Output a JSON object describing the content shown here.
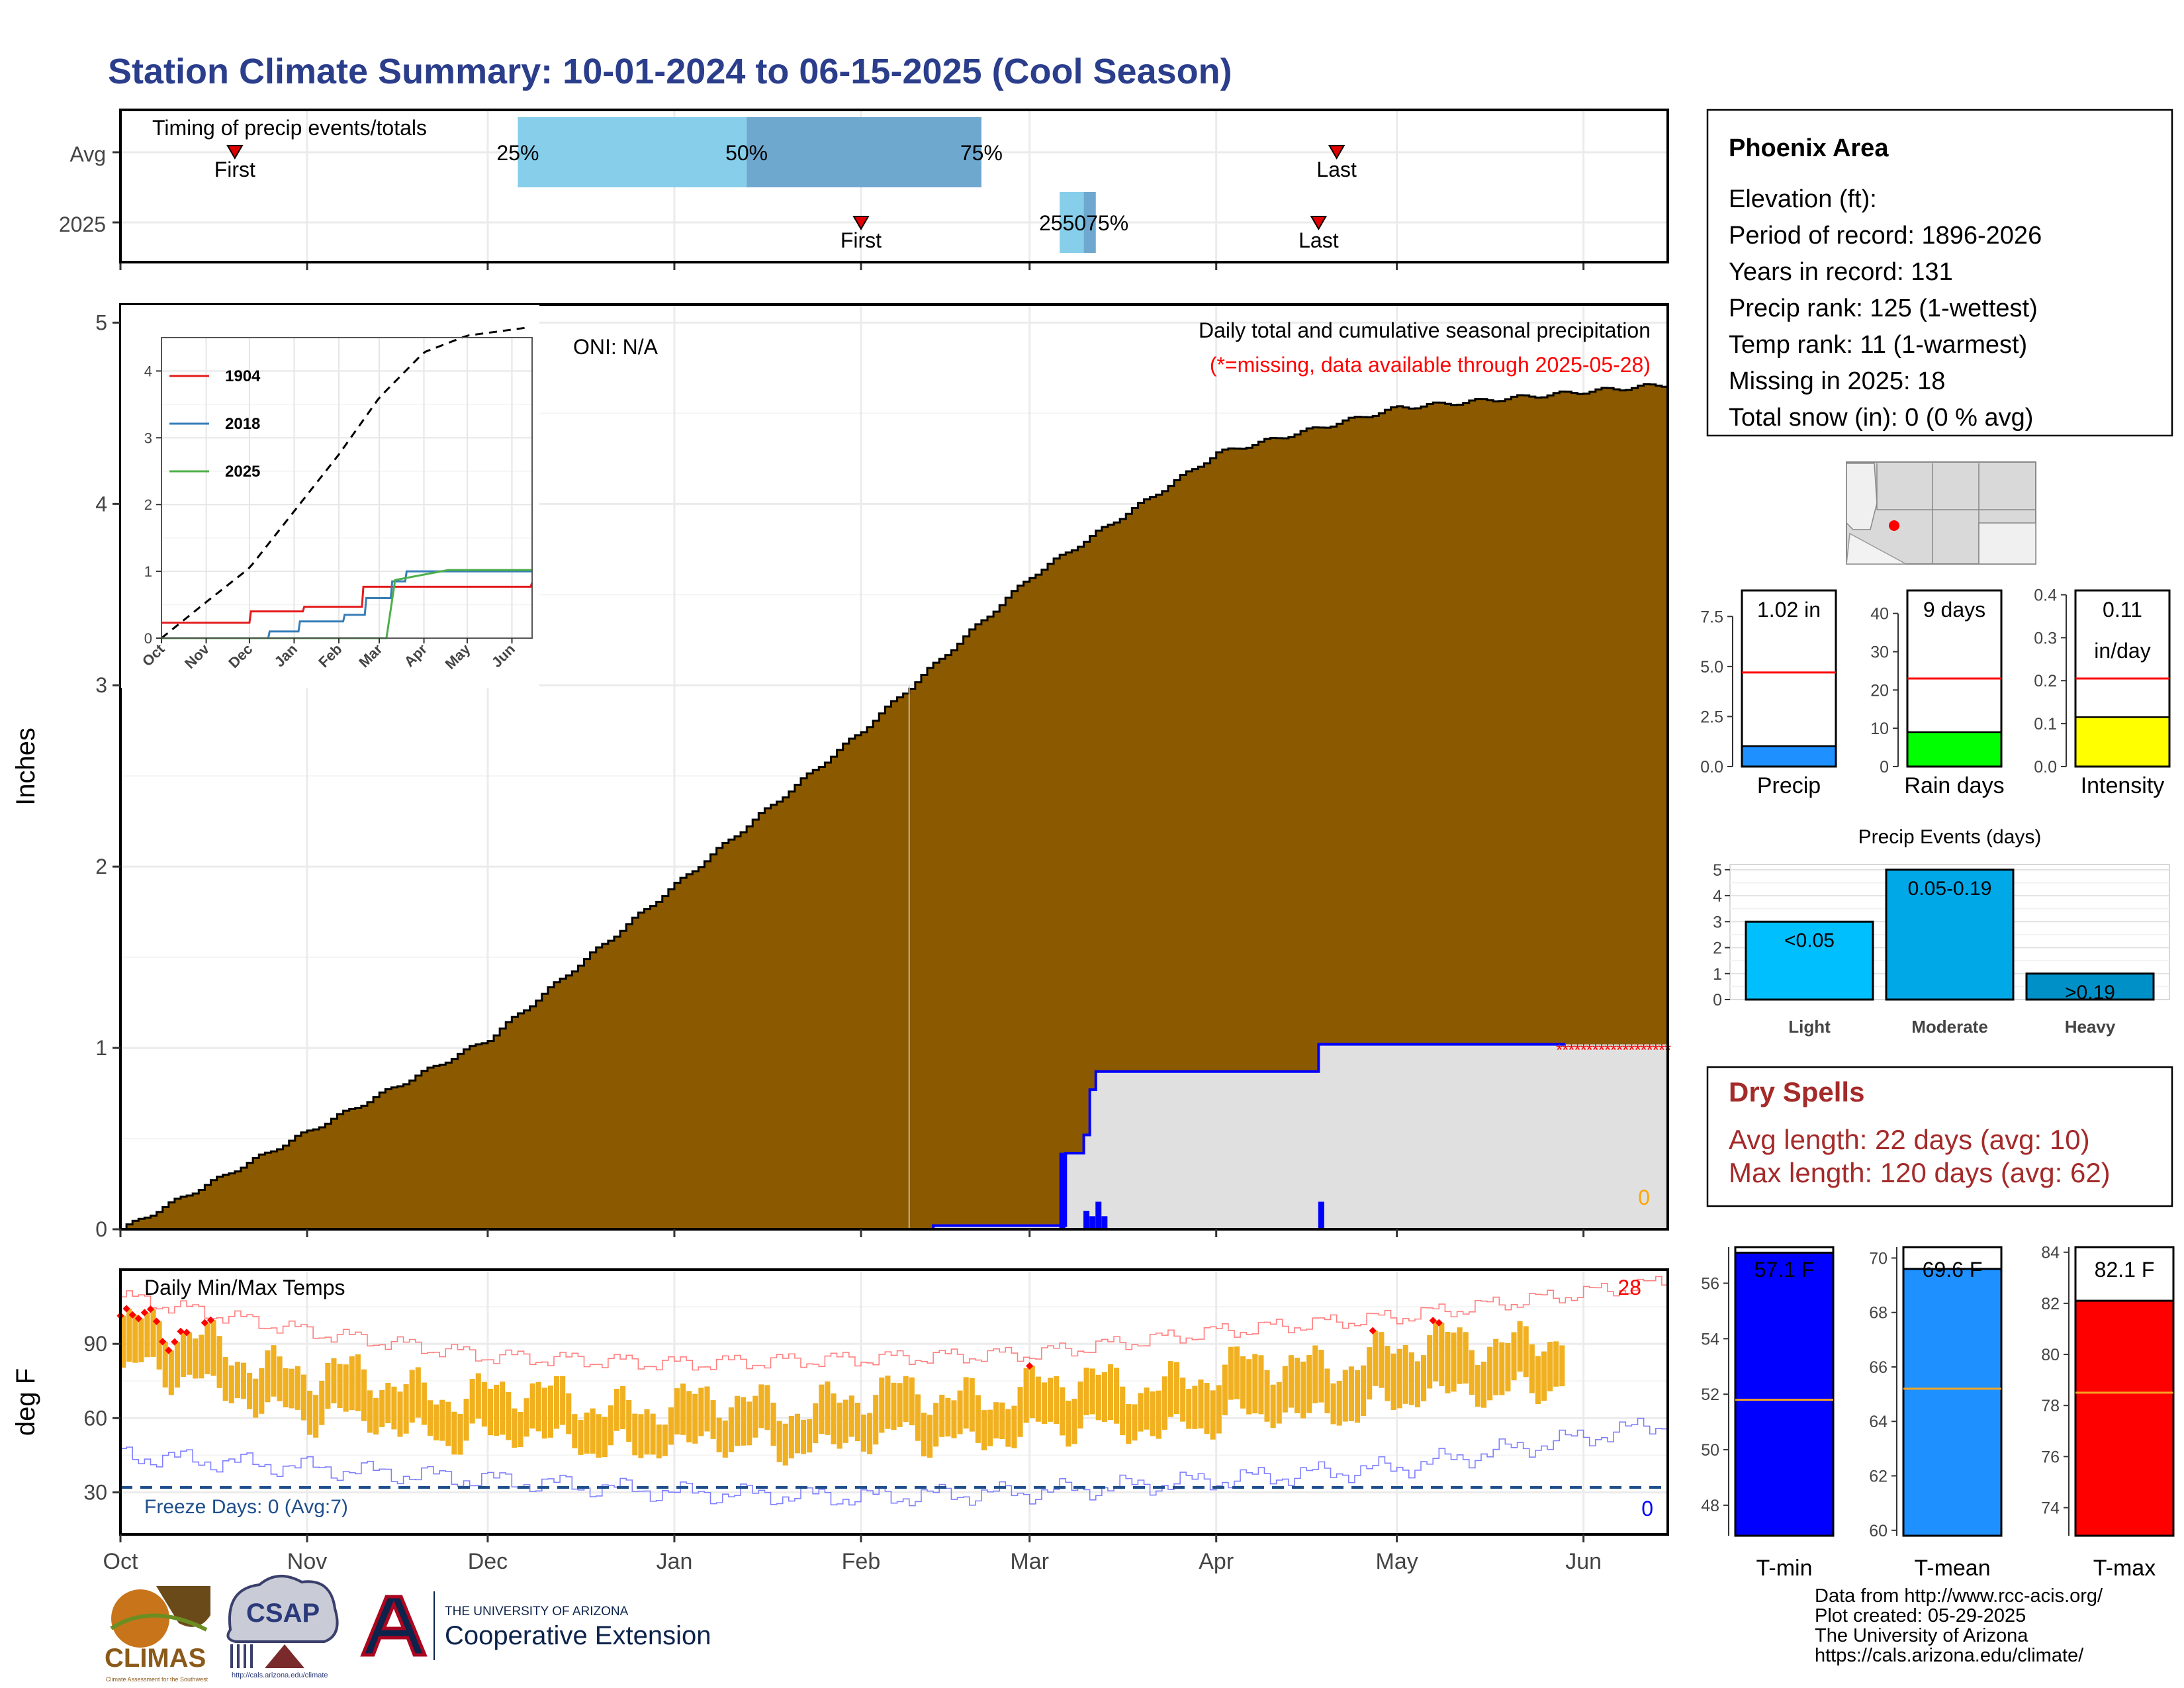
{
  "title": "Station Climate Summary: 10-01-2024 to 06-15-2025 (Cool Season)",
  "colors": {
    "title": "#2b3e8c",
    "cum_avg": "#8b5a00",
    "cum_obs_fill": "#e0e0e0",
    "obs_line": "#0000ff",
    "missing": "#ff0000",
    "temp_bar": "#f0b020",
    "tmax_line": "#ff8080",
    "tmin_line": "#8080ff",
    "freeze": "#1f4e8c",
    "onset_light": "#87ceeb",
    "onset_dark": "#6fa8cf",
    "dry_spell": "#a52a2a",
    "orange_zero": "#ffa500"
  },
  "timing_panel": {
    "label": "Timing of precip events/totals",
    "row_labels": [
      "Avg",
      "2025"
    ],
    "first_label": "First",
    "last_label": "Last",
    "pct_labels": [
      "25%",
      "50%",
      "75%"
    ],
    "pct_2025_label": "255075%",
    "avg": {
      "first": "2024-10-20",
      "p25": "2024-12-06",
      "p50": "2025-01-13",
      "p75": "2025-02-21",
      "last": "2025-04-21"
    },
    "y2025": {
      "first": "2025-02-01",
      "p25": "2025-03-06",
      "p50": "2025-03-10",
      "p75": "2025-03-12",
      "last": "2025-04-18"
    }
  },
  "main_panel": {
    "ylabel": "Inches",
    "yticks": [
      "0",
      "1",
      "2",
      "3",
      "4",
      "5"
    ],
    "xticks": [
      "Oct",
      "Nov",
      "Dec",
      "Jan",
      "Feb",
      "Mar",
      "Apr",
      "May",
      "Jun"
    ],
    "oni": "ONI: N/A",
    "subtitle1": "Daily total and cumulative seasonal precipitation",
    "subtitle2": "(*=missing, data available through 2025-05-28)",
    "zero_label": "0"
  },
  "inset": {
    "yticks": [
      "0",
      "1",
      "2",
      "3",
      "4"
    ],
    "xticks": [
      "Oct",
      "Nov",
      "Dec",
      "Jan",
      "Feb",
      "Mar",
      "Apr",
      "May",
      "Jun"
    ],
    "legend": [
      "1904",
      "2018",
      "2025"
    ],
    "legend_colors": [
      "#e41a1c",
      "#377eb8",
      "#4daf4a"
    ]
  },
  "temp_panel": {
    "ylabel": "deg F",
    "title": "Daily Min/Max Temps",
    "yticks": [
      "30",
      "60",
      "90"
    ],
    "freeze_label": "Freeze Days: 0 (Avg:7)",
    "right_top": "28",
    "right_bottom": "0",
    "xticks": [
      "Oct",
      "Nov",
      "Dec",
      "Jan",
      "Feb",
      "Mar",
      "Apr",
      "May",
      "Jun"
    ]
  },
  "station_box": {
    "name": "Phoenix Area",
    "lines": [
      "Elevation (ft):",
      "Period of record: 1896-2026",
      "Years in record: 131",
      "Precip rank: 125 (1-wettest)",
      "Temp rank: 11 (1-warmest)",
      "Missing in 2025: 18",
      "Total snow (in): 0 (0 % avg)"
    ]
  },
  "precip_summary": {
    "precip": {
      "label": "Precip",
      "value_label": "1.02 in",
      "value": 1.02,
      "avg": 4.7,
      "yticks": [
        "0.0",
        "2.5",
        "5.0",
        "7.5"
      ],
      "ymax": 8.8,
      "color": "#1e90ff"
    },
    "rain_days": {
      "label": "Rain days",
      "value_label": "9 days",
      "value": 9,
      "avg": 23,
      "yticks": [
        "0",
        "10",
        "20",
        "30",
        "40"
      ],
      "ymax": 46,
      "color": "#00ff00"
    },
    "intensity": {
      "label": "Intensity",
      "value_label1": "0.11",
      "value_label2": "in/day",
      "value": 0.115,
      "avg": 0.205,
      "yticks": [
        "0.0",
        "0.1",
        "0.2",
        "0.3",
        "0.4"
      ],
      "ymax": 0.41,
      "color": "#ffff00"
    }
  },
  "events_chart": {
    "title": "Precip Events (days)",
    "yticks": [
      "0",
      "1",
      "2",
      "3",
      "4",
      "5"
    ],
    "categories": [
      "Light",
      "Moderate",
      "Heavy"
    ],
    "bar_labels": [
      "<0.05",
      "0.05-0.19",
      ">0.19"
    ],
    "values": [
      3,
      5,
      1
    ],
    "colors": [
      "#00bfff",
      "#00a8e8",
      "#0090c8"
    ]
  },
  "dry_spells": {
    "title": "Dry Spells",
    "avg_line": "Avg length: 22 days (avg: 10)",
    "max_line": "Max length: 120 days (avg: 62)"
  },
  "temp_summary": {
    "tmin": {
      "label": "T-min",
      "value_label": "57.1 F",
      "value": 57.1,
      "avg": 51.8,
      "yticks": [
        "48",
        "50",
        "52",
        "54",
        "56"
      ],
      "ymin": 46.9,
      "ymax": 57.3,
      "color": "#0000ff"
    },
    "tmean": {
      "label": "T-mean",
      "value_label": "69.6 F",
      "value": 69.6,
      "avg": 65.2,
      "yticks": [
        "60",
        "62",
        "64",
        "66",
        "68",
        "70"
      ],
      "ymin": 59.8,
      "ymax": 70.4,
      "color": "#1e90ff"
    },
    "tmax": {
      "label": "T-max",
      "value_label": "82.1 F",
      "value": 82.1,
      "avg": 78.5,
      "yticks": [
        "74",
        "76",
        "78",
        "80",
        "82",
        "84"
      ],
      "ymin": 72.9,
      "ymax": 84.2,
      "color": "#ff0000"
    }
  },
  "footer": {
    "lines": [
      "Data from http://www.rcc-acis.org/",
      "Plot created: 05-29-2025",
      "The University of Arizona",
      "https://cals.arizona.edu/climate/"
    ],
    "climas": "CLIMAS",
    "climas_sub": "Climate Assessment for the Southwest",
    "csap": "CSAP",
    "csap_url": "http://cals.arizona.edu/climate",
    "ua_line1": "THE UNIVERSITY OF ARIZONA",
    "ua_line2": "Cooperative Extension"
  },
  "chart_data": [
    {
      "type": "area",
      "title": "Daily total and cumulative seasonal precipitation",
      "ylabel": "Inches",
      "ylim": [
        0,
        5.1
      ],
      "x_range": [
        "2024-10-01",
        "2025-06-15"
      ],
      "series": [
        {
          "name": "",
          "x": [
            "2024-10-01",
            "2024-11-01",
            "2024-12-01",
            "2025-01-01",
            "2025-02-01",
            "2025-03-01",
            "2025-04-01",
            "2025-05-01",
            "2025-06-15"
          ],
          "values": [
            0.0,
            0.54,
            1.05,
            1.9,
            2.75,
            3.6,
            4.28,
            4.53,
            4.66
          ]
        },
        {
          "name": "",
          "x": [
            "2024-10-01",
            "2025-02-13",
            "2025-03-06",
            "2025-03-07",
            "2025-03-10",
            "2025-03-11",
            "2025-03-12",
            "2025-04-18",
            "2025-05-28"
          ],
          "values": [
            0.0,
            0.02,
            0.02,
            0.42,
            0.52,
            0.77,
            0.87,
            1.02,
            1.02
          ]
        }
      ],
      "daily_bars": [
        {
          "x": "2025-03-06",
          "value": 0.42
        },
        {
          "x": "2025-03-10",
          "value": 0.1
        },
        {
          "x": "2025-03-11",
          "value": 0.07
        },
        {
          "x": "2025-03-12",
          "value": 0.15
        },
        {
          "x": "2025-03-13",
          "value": 0.07
        },
        {
          "x": "2025-04-18",
          "value": 0.15
        }
      ]
    },
    {
      "type": "line",
      "title": "",
      "ylim": [
        0,
        4.5
      ],
      "x_range": [
        "2024-10-01",
        "2025-06-15"
      ],
      "series": [
        {
          "name": "",
          "x": [
            "2024-10-01",
            "2024-11-01",
            "2024-12-01",
            "2025-01-01",
            "2025-02-01",
            "2025-03-01",
            "2025-04-01",
            "2025-05-01",
            "2025-06-15"
          ],
          "values": [
            0.0,
            0.54,
            1.05,
            1.9,
            2.75,
            3.6,
            4.28,
            4.53,
            4.66
          ]
        },
        {
          "name": "1904",
          "x": [
            "2024-10-01",
            "2024-12-02",
            "2025-01-08",
            "2025-02-18",
            "2025-06-15"
          ],
          "values": [
            0.23,
            0.4,
            0.47,
            0.77,
            0.83
          ]
        },
        {
          "name": "2018",
          "x": [
            "2024-10-01",
            "2024-12-01",
            "2024-12-15",
            "2025-01-05",
            "2025-02-05",
            "2025-02-20",
            "2025-03-10",
            "2025-03-20",
            "2025-06-15"
          ],
          "values": [
            0.0,
            0.0,
            0.1,
            0.25,
            0.35,
            0.6,
            0.85,
            1.0,
            1.0
          ]
        },
        {
          "name": "2025",
          "x": [
            "2024-10-01",
            "2025-03-06",
            "2025-03-12",
            "2025-04-18",
            "2025-06-15"
          ],
          "values": [
            0.0,
            0.0,
            0.87,
            1.02,
            1.02
          ]
        }
      ]
    },
    {
      "type": "bar",
      "title": "Daily Min/Max Temps",
      "ylabel": "deg F",
      "ylim": [
        13,
        120
      ],
      "series": [
        {
          "name": "",
          "x": [
            "2024-10-01",
            "2024-10-20",
            "2024-11-01",
            "2024-12-01",
            "2025-01-01",
            "2025-02-01",
            "2025-03-01",
            "2025-04-01",
            "2025-05-01",
            "2025-05-28"
          ],
          "values": [
            98,
            88,
            78,
            70,
            65,
            68,
            72,
            78,
            88,
            95
          ]
        },
        {
          "name": "",
          "x": [
            "2024-10-01",
            "2024-10-20",
            "2024-11-01",
            "2024-12-01",
            "2025-01-01",
            "2025-02-01",
            "2025-03-01",
            "2025-04-01",
            "2025-05-01",
            "2025-05-28"
          ],
          "values": [
            80,
            70,
            60,
            52,
            48,
            50,
            54,
            58,
            66,
            75
          ]
        },
        {
          "name": "",
          "x": [
            "2024-10-01",
            "2024-11-01",
            "2024-12-01",
            "2025-01-01",
            "2025-02-01",
            "2025-03-01",
            "2025-04-01",
            "2025-05-01",
            "2025-06-15"
          ],
          "values": [
            109,
            95,
            85,
            82,
            84,
            86,
            95,
            101,
            115
          ]
        },
        {
          "name": "",
          "x": [
            "2024-10-01",
            "2024-11-01",
            "2024-12-01",
            "2025-01-01",
            "2025-02-01",
            "2025-03-01",
            "2025-04-01",
            "2025-05-01",
            "2025-06-15"
          ],
          "values": [
            45,
            40,
            35,
            30,
            28,
            30,
            35,
            40,
            58
          ]
        }
      ],
      "freeze_threshold": 32
    },
    {
      "type": "bar",
      "title": "Precip Events (days)",
      "categories": [
        "Light",
        "Moderate",
        "Heavy"
      ],
      "values": [
        3,
        5,
        1
      ],
      "ylim": [
        0,
        5.2
      ]
    },
    {
      "type": "bar",
      "categories": [
        "Precip",
        "Rain days",
        "Intensity"
      ],
      "series": [
        {
          "name": "",
          "values": [
            1.02,
            9,
            0.115
          ]
        },
        {
          "name": "",
          "values": [
            4.7,
            23,
            0.205
          ]
        }
      ]
    },
    {
      "type": "bar",
      "categories": [
        "T-min",
        "T-mean",
        "T-max"
      ],
      "series": [
        {
          "name": "",
          "values": [
            57.1,
            69.6,
            82.1
          ]
        },
        {
          "name": "",
          "values": [
            51.8,
            65.2,
            78.5
          ]
        }
      ]
    }
  ]
}
